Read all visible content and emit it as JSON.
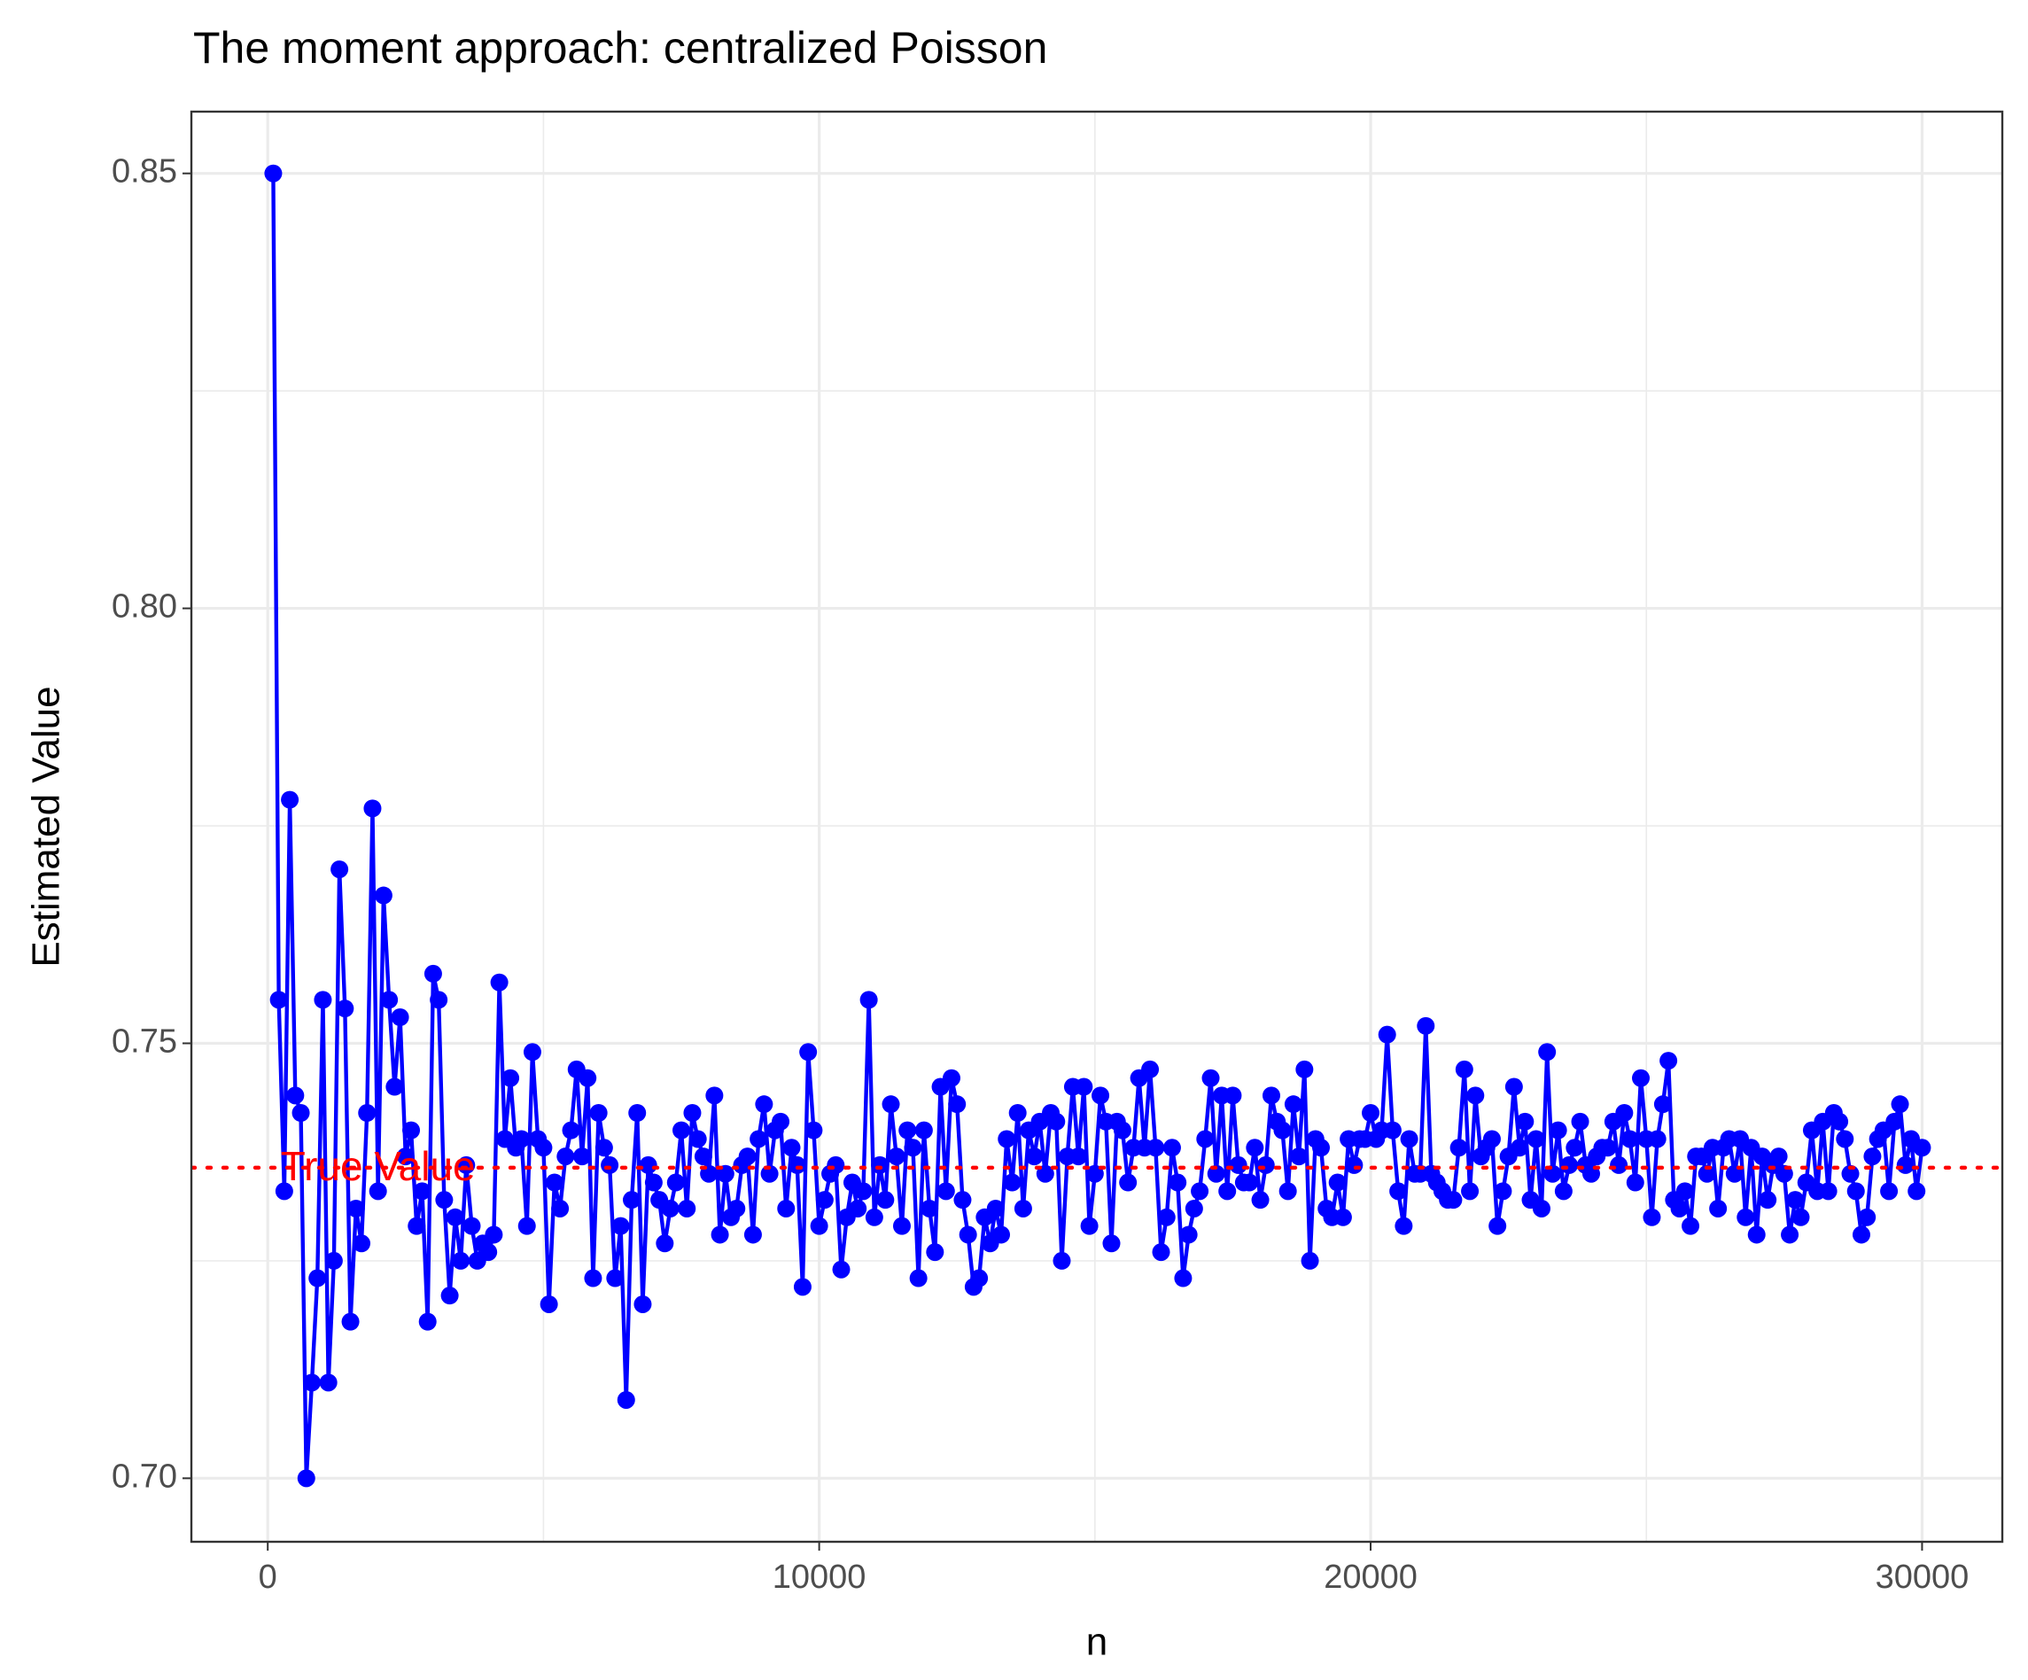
{
  "chart_data": {
    "type": "line",
    "title": "The moment approach: centralized Poisson",
    "xlabel": "n",
    "ylabel": "Estimated Value",
    "series": [
      {
        "name": "Estimated Value",
        "color": "#0000ff",
        "x": [
          100,
          200,
          300,
          400,
          500,
          600,
          700,
          800,
          900,
          1000,
          1100,
          1200,
          1300,
          1400,
          1500,
          1600,
          1700,
          1800,
          1900,
          2000,
          2100,
          2200,
          2300,
          2400,
          2500,
          2600,
          2700,
          2800,
          2900,
          3000,
          3100,
          3200,
          3300,
          3400,
          3500,
          3600,
          3700,
          3800,
          3900,
          4000,
          4100,
          4200,
          4300,
          4400,
          4500,
          4600,
          4700,
          4800,
          4900,
          5000,
          5100,
          5200,
          5300,
          5400,
          5500,
          5600,
          5700,
          5800,
          5900,
          6000,
          6100,
          6200,
          6300,
          6400,
          6500,
          6600,
          6700,
          6800,
          6900,
          7000,
          7100,
          7200,
          7300,
          7400,
          7500,
          7600,
          7700,
          7800,
          7900,
          8000,
          8100,
          8200,
          8300,
          8400,
          8500,
          8600,
          8700,
          8800,
          8900,
          9000,
          9100,
          9200,
          9300,
          9400,
          9500,
          9600,
          9700,
          9800,
          9900,
          10000,
          10100,
          10200,
          10300,
          10400,
          10500,
          10600,
          10700,
          10800,
          10900,
          11000,
          11100,
          11200,
          11300,
          11400,
          11500,
          11600,
          11700,
          11800,
          11900,
          12000,
          12100,
          12200,
          12300,
          12400,
          12500,
          12600,
          12700,
          12800,
          12900,
          13000,
          13100,
          13200,
          13300,
          13400,
          13500,
          13600,
          13700,
          13800,
          13900,
          14000,
          14100,
          14200,
          14300,
          14400,
          14500,
          14600,
          14700,
          14800,
          14900,
          15000,
          15100,
          15200,
          15300,
          15400,
          15500,
          15600,
          15700,
          15800,
          15900,
          16000,
          16100,
          16200,
          16300,
          16400,
          16500,
          16600,
          16700,
          16800,
          16900,
          17000,
          17100,
          17200,
          17300,
          17400,
          17500,
          17600,
          17700,
          17800,
          17900,
          18000,
          18100,
          18200,
          18300,
          18400,
          18500,
          18600,
          18700,
          18800,
          18900,
          19000,
          19100,
          19200,
          19300,
          19400,
          19500,
          19600,
          19700,
          19800,
          19900,
          20000,
          20100,
          20200,
          20300,
          20400,
          20500,
          20600,
          20700,
          20800,
          20900,
          21000,
          21100,
          21200,
          21300,
          21400,
          21500,
          21600,
          21700,
          21800,
          21900,
          22000,
          22100,
          22200,
          22300,
          22400,
          22500,
          22600,
          22700,
          22800,
          22900,
          23000,
          23100,
          23200,
          23300,
          23400,
          23500,
          23600,
          23700,
          23800,
          23900,
          24000,
          24100,
          24200,
          24300,
          24400,
          24500,
          24600,
          24700,
          24800,
          24900,
          25000,
          25100,
          25200,
          25300,
          25400,
          25500,
          25600,
          25700,
          25800,
          25900,
          26000,
          26100,
          26200,
          26300,
          26400,
          26500,
          26600,
          26700,
          26800,
          26900,
          27000,
          27100,
          27200,
          27300,
          27400,
          27500,
          27600,
          27700,
          27800,
          27900,
          28000,
          28100,
          28200,
          28300,
          28400,
          28500,
          28600,
          28700,
          28800,
          28900,
          29000,
          29100,
          29200,
          29300,
          29400,
          29500,
          29600,
          29700,
          29800,
          29900,
          30000
        ],
        "values": [
          0.85,
          0.755,
          0.733,
          0.778,
          0.744,
          0.742,
          0.7,
          0.711,
          0.723,
          0.755,
          0.711,
          0.725,
          0.77,
          0.754,
          0.718,
          0.731,
          0.727,
          0.742,
          0.777,
          0.733,
          0.767,
          0.755,
          0.745,
          0.753,
          0.737,
          0.74,
          0.729,
          0.733,
          0.718,
          0.758,
          0.755,
          0.732,
          0.721,
          0.73,
          0.725,
          0.736,
          0.729,
          0.725,
          0.727,
          0.726,
          0.728,
          0.757,
          0.739,
          0.746,
          0.738,
          0.739,
          0.729,
          0.749,
          0.739,
          0.738,
          0.72,
          0.734,
          0.731,
          0.737,
          0.74,
          0.747,
          0.737,
          0.746,
          0.723,
          0.742,
          0.738,
          0.736,
          0.723,
          0.729,
          0.709,
          0.732,
          0.742,
          0.72,
          0.736,
          0.734,
          0.732,
          0.727,
          0.731,
          0.734,
          0.74,
          0.731,
          0.742,
          0.739,
          0.737,
          0.735,
          0.744,
          0.728,
          0.735,
          0.73,
          0.731,
          0.736,
          0.737,
          0.728,
          0.739,
          0.743,
          0.735,
          0.74,
          0.741,
          0.731,
          0.738,
          0.736,
          0.722,
          0.749,
          0.74,
          0.729,
          0.732,
          0.735,
          0.736,
          0.724,
          0.73,
          0.734,
          0.731,
          0.733,
          0.755,
          0.73,
          0.736,
          0.732,
          0.743,
          0.737,
          0.729,
          0.74,
          0.738,
          0.723,
          0.74,
          0.731,
          0.726,
          0.745,
          0.733,
          0.746,
          0.743,
          0.732,
          0.728,
          0.722,
          0.723,
          0.73,
          0.727,
          0.731,
          0.728,
          0.739,
          0.734,
          0.742,
          0.731,
          0.74,
          0.737,
          0.741,
          0.735,
          0.742,
          0.741,
          0.725,
          0.737,
          0.745,
          0.737,
          0.745,
          0.729,
          0.735,
          0.744,
          0.741,
          0.727,
          0.741,
          0.74,
          0.734,
          0.738,
          0.746,
          0.738,
          0.747,
          0.738,
          0.726,
          0.73,
          0.738,
          0.734,
          0.723,
          0.728,
          0.731,
          0.733,
          0.739,
          0.746,
          0.735,
          0.744,
          0.733,
          0.744,
          0.736,
          0.734,
          0.734,
          0.738,
          0.732,
          0.736,
          0.744,
          0.741,
          0.74,
          0.733,
          0.743,
          0.737,
          0.747,
          0.725,
          0.739,
          0.738,
          0.731,
          0.73,
          0.734,
          0.73,
          0.739,
          0.736,
          0.739,
          0.739,
          0.742,
          0.739,
          0.74,
          0.751,
          0.74,
          0.733,
          0.729,
          0.739,
          0.735,
          0.735,
          0.752,
          0.735,
          0.734,
          0.733,
          0.732,
          0.732,
          0.738,
          0.747,
          0.733,
          0.744,
          0.737,
          0.738,
          0.739,
          0.729,
          0.733,
          0.737,
          0.745,
          0.738,
          0.741,
          0.732,
          0.739,
          0.731,
          0.749,
          0.735,
          0.74,
          0.733,
          0.736,
          0.738,
          0.741,
          0.736,
          0.735,
          0.737,
          0.738,
          0.738,
          0.741,
          0.736,
          0.742,
          0.739,
          0.734,
          0.746,
          0.739,
          0.73,
          0.739,
          0.743,
          0.748,
          0.732,
          0.731,
          0.733,
          0.729,
          0.737,
          0.737,
          0.735,
          0.738,
          0.731,
          0.738,
          0.739,
          0.735,
          0.739,
          0.73,
          0.738,
          0.728,
          0.737,
          0.732,
          0.736,
          0.737,
          0.735,
          0.728,
          0.732,
          0.73,
          0.734,
          0.74,
          0.733,
          0.741,
          0.733,
          0.742,
          0.741,
          0.739,
          0.735,
          0.733,
          0.728,
          0.73,
          0.737,
          0.739,
          0.74,
          0.733,
          0.741,
          0.743,
          0.736,
          0.739,
          0.733,
          0.738
        ]
      }
    ],
    "reference_line": {
      "y": 0.7357,
      "color": "#ff0000",
      "style": "dotted"
    },
    "annotation": {
      "text": "True Value",
      "x": 2000,
      "color": "#ff0000"
    },
    "xlim": [
      -1385,
      31455
    ],
    "xticks": [
      0,
      10000,
      20000,
      30000
    ],
    "ylim": [
      0.6927,
      0.8571
    ],
    "yticks": [
      {
        "value": 0.7,
        "label": "0.70"
      },
      {
        "value": 0.75,
        "label": "0.75"
      },
      {
        "value": 0.8,
        "label": "0.80"
      },
      {
        "value": 0.85,
        "label": "0.85"
      }
    ],
    "grid": true
  }
}
